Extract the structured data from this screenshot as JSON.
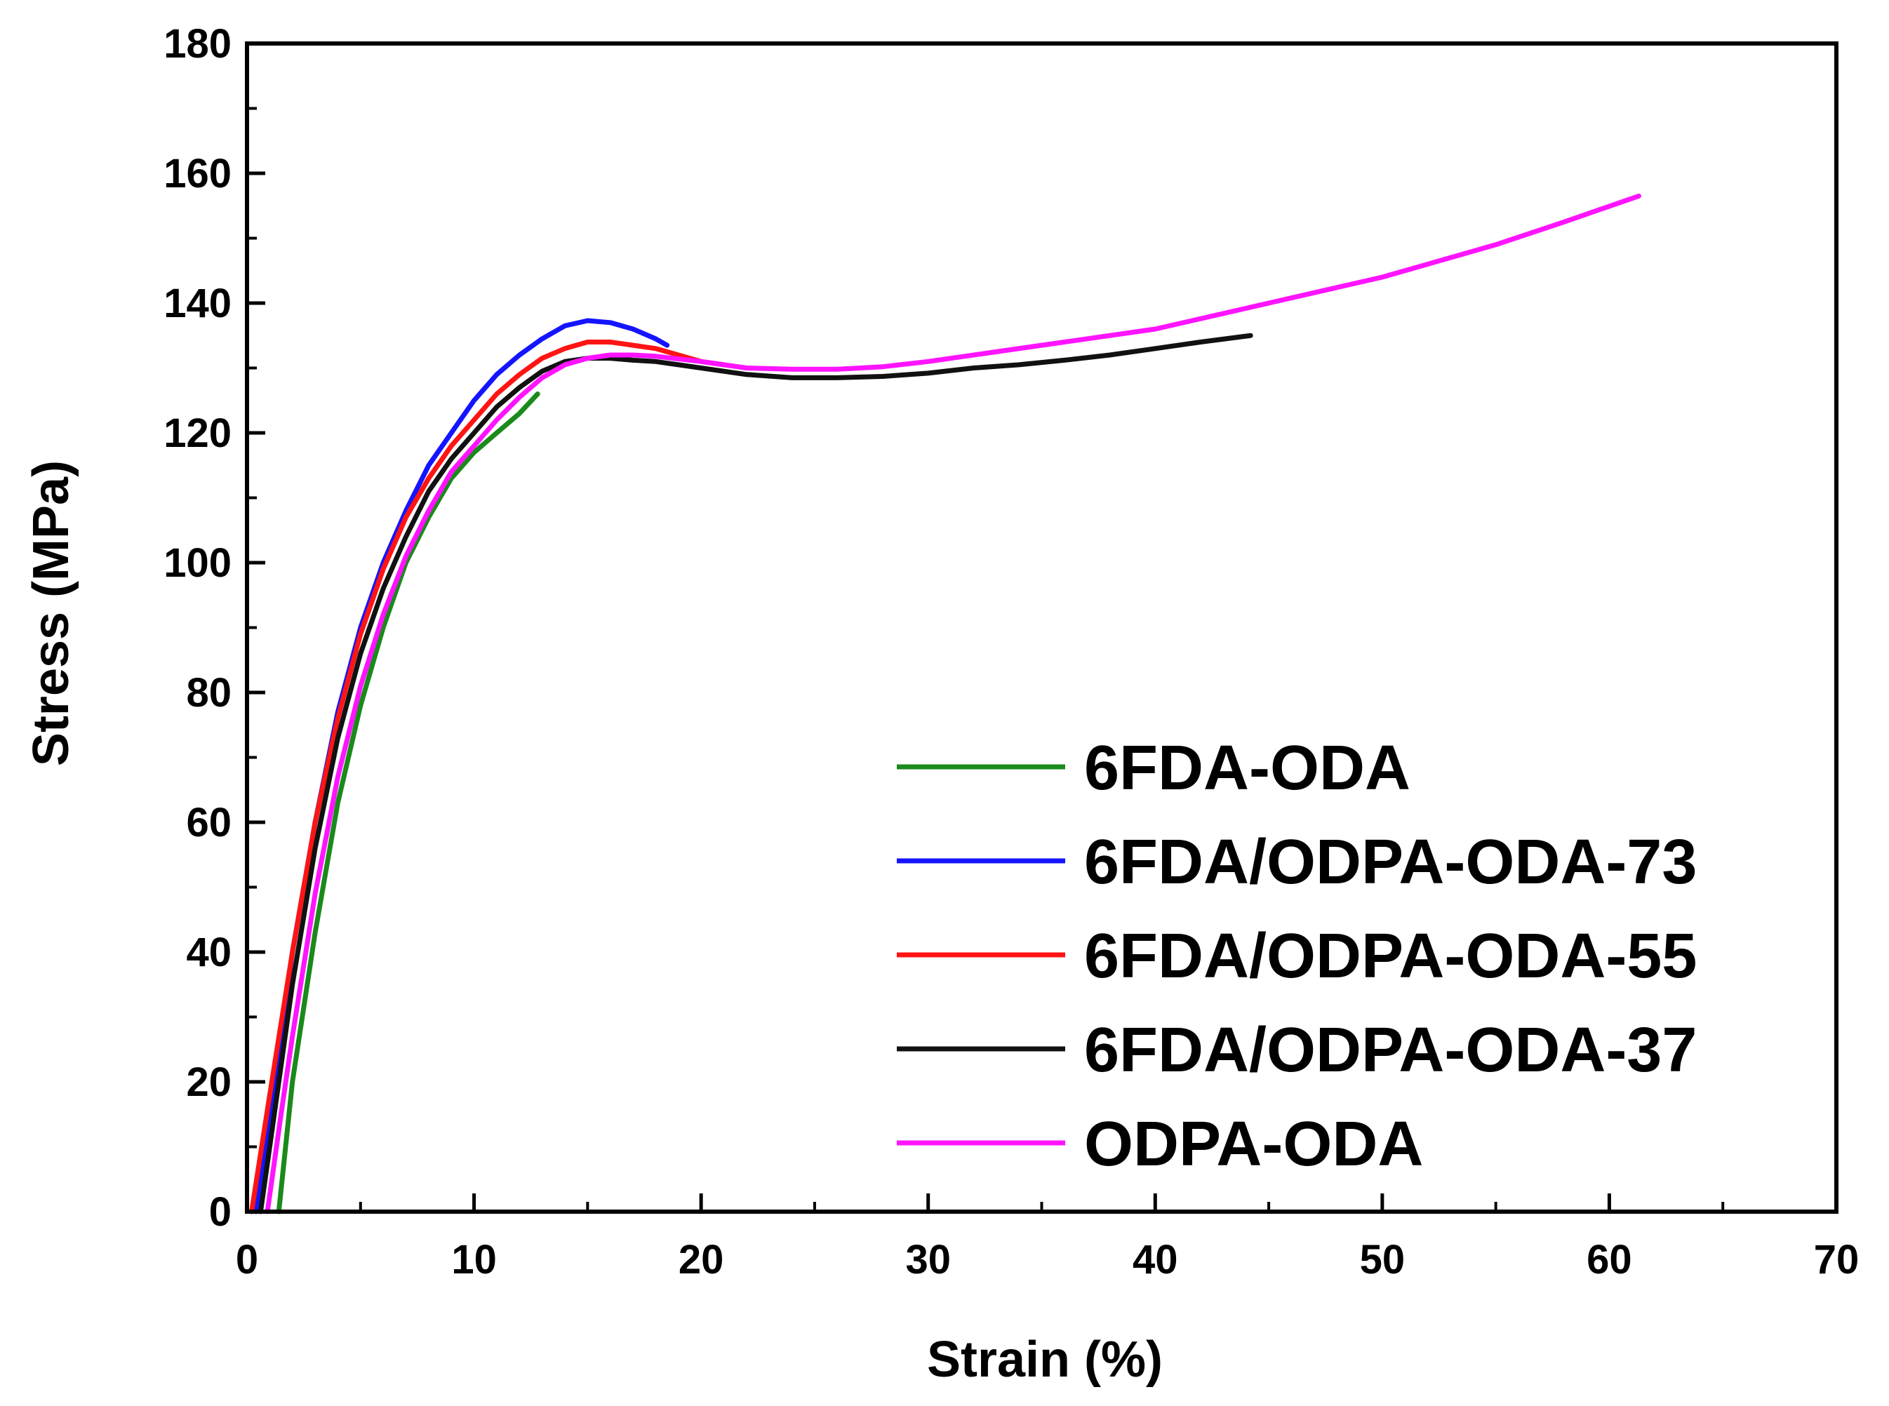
{
  "chart_data": {
    "type": "line",
    "title": "",
    "xlabel": "Strain (%)",
    "ylabel": "Stress (MPa)",
    "xlim": [
      0,
      70
    ],
    "ylim": [
      0,
      180
    ],
    "xticks": [
      0,
      10,
      20,
      30,
      40,
      50,
      60,
      70
    ],
    "yticks": [
      0,
      20,
      40,
      60,
      80,
      100,
      120,
      140,
      160,
      180
    ],
    "grid": false,
    "legend_position": "bottom-right",
    "series": [
      {
        "name": "6FDA-ODA",
        "color": "#1a8a1a",
        "x": [
          1.4,
          2,
          3,
          4,
          5,
          6,
          7,
          8,
          9,
          10,
          11,
          12,
          12.8
        ],
        "y": [
          0,
          20,
          43,
          63,
          78,
          90,
          100,
          107,
          113,
          117,
          120,
          123,
          126
        ]
      },
      {
        "name": "6FDA/ODPA-ODA-73",
        "color": "#1414ff",
        "x": [
          0.4,
          1,
          2,
          3,
          4,
          5,
          6,
          7,
          8,
          9,
          10,
          11,
          12,
          13,
          14,
          15,
          16,
          17,
          18,
          18.5
        ],
        "y": [
          0,
          15,
          40,
          60,
          77,
          90,
          100,
          108,
          115,
          120,
          125,
          129,
          132,
          134.5,
          136.5,
          137.3,
          137,
          136,
          134.5,
          133.5
        ]
      },
      {
        "name": "6FDA/ODPA-ODA-55",
        "color": "#ff1414",
        "x": [
          0.2,
          1,
          2,
          3,
          4,
          5,
          6,
          7,
          8,
          9,
          10,
          11,
          12,
          13,
          14,
          15,
          16,
          17,
          18,
          19,
          20,
          21
        ],
        "y": [
          0,
          18,
          40,
          60,
          76,
          89,
          99,
          107,
          113,
          118,
          122,
          126,
          129,
          131.5,
          133,
          134,
          134,
          133.5,
          133,
          132,
          131,
          130.5
        ]
      },
      {
        "name": "6FDA/ODPA-ODA-37",
        "color": "#111111",
        "x": [
          0.6,
          1,
          2,
          3,
          4,
          5,
          6,
          7,
          8,
          9,
          10,
          11,
          12,
          13,
          14,
          15,
          16,
          17,
          18,
          19,
          20,
          22,
          24,
          26,
          28,
          30,
          32,
          34,
          36,
          38,
          40,
          42,
          44.2
        ],
        "y": [
          0,
          10,
          35,
          56,
          73,
          86,
          96,
          104,
          111,
          116,
          120,
          124,
          127,
          129.5,
          131,
          131.5,
          131.5,
          131.2,
          131,
          130.5,
          130,
          129,
          128.5,
          128.5,
          128.7,
          129.2,
          130,
          130.5,
          131.2,
          132,
          133,
          134,
          135
        ]
      },
      {
        "name": "ODPA-ODA",
        "color": "#ff14ff",
        "x": [
          0.9,
          1.5,
          2,
          3,
          4,
          5,
          6,
          7,
          8,
          9,
          10,
          11,
          12,
          13,
          14,
          15,
          16,
          17,
          18,
          20,
          22,
          24,
          26,
          28,
          30,
          33,
          36,
          40,
          45,
          50,
          55,
          58,
          61.3
        ],
        "y": [
          0,
          15,
          27,
          49,
          67,
          81,
          92,
          101,
          108,
          114,
          118,
          122,
          125.5,
          128.5,
          130.5,
          131.5,
          132,
          132,
          131.8,
          131,
          130,
          129.8,
          129.8,
          130.2,
          131,
          132.5,
          134,
          136,
          140,
          144,
          149,
          152.5,
          156.5
        ]
      }
    ]
  }
}
